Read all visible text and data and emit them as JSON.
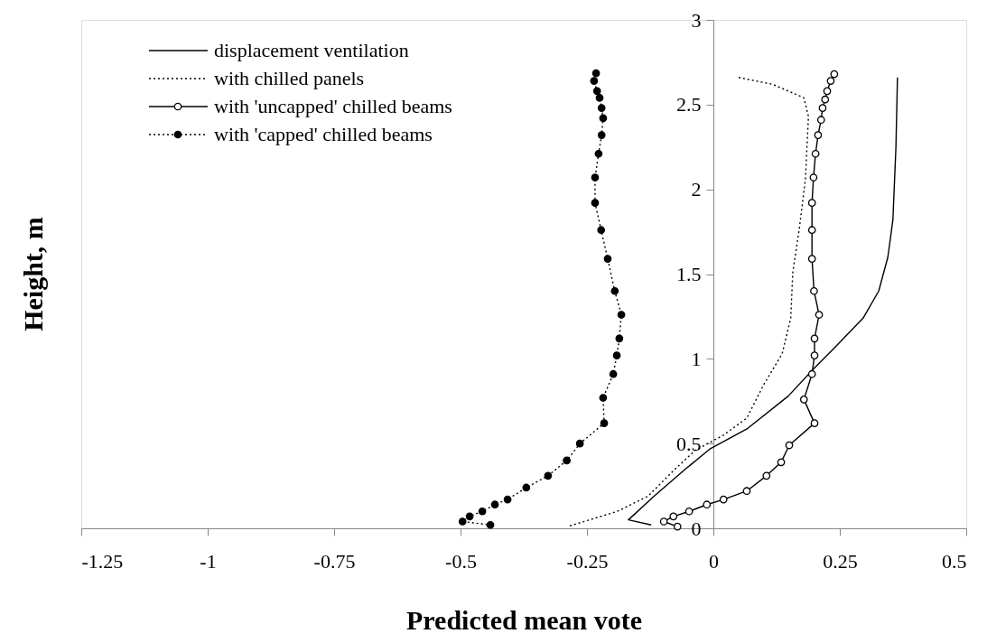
{
  "chart_data": {
    "type": "line",
    "xlabel": "Predicted mean vote",
    "ylabel": "Height, m",
    "xlim": [
      -1.25,
      0.5
    ],
    "xticks": [
      -1.25,
      -1,
      -0.75,
      -0.5,
      -0.25,
      0,
      0.25,
      0.5
    ],
    "ylim": [
      0,
      3
    ],
    "yticks": [
      0,
      0.5,
      1,
      1.5,
      2,
      2.5,
      3
    ],
    "grid": false,
    "legend": "top left",
    "series": [
      {
        "name": "displacement ventilation",
        "color": "#000000",
        "line_style": "solid",
        "marker": "none",
        "x": [
          0.364,
          0.361,
          0.355,
          0.345,
          0.327,
          0.296,
          0.241,
          0.198,
          0.148,
          0.068,
          -0.006,
          -0.055,
          -0.117,
          -0.168,
          -0.123
        ],
        "values": [
          2.66,
          2.25,
          1.82,
          1.6,
          1.4,
          1.24,
          1.07,
          0.94,
          0.78,
          0.59,
          0.47,
          0.35,
          0.19,
          0.05,
          0.02
        ]
      },
      {
        "name": "with chilled panels",
        "color": "#000000",
        "line_style": "dotted",
        "marker": "none",
        "x": [
          0.05,
          0.117,
          0.179,
          0.188,
          0.182,
          0.17,
          0.157,
          0.153,
          0.136,
          0.1,
          0.066,
          0.02,
          -0.036,
          -0.079,
          -0.129,
          -0.19,
          -0.289
        ],
        "values": [
          2.66,
          2.62,
          2.54,
          2.43,
          2.06,
          1.77,
          1.51,
          1.24,
          1.03,
          0.85,
          0.65,
          0.55,
          0.46,
          0.34,
          0.19,
          0.1,
          0.01
        ]
      },
      {
        "name": "with 'uncapped' chilled beams",
        "color": "#000000",
        "line_style": "solid",
        "marker": "circle",
        "x": [
          0.239,
          0.232,
          0.225,
          0.221,
          0.216,
          0.213,
          0.207,
          0.202,
          0.198,
          0.195,
          0.195,
          0.195,
          0.199,
          0.209,
          0.2,
          0.2,
          0.195,
          0.179,
          0.2,
          0.15,
          0.134,
          0.105,
          0.066,
          0.02,
          -0.013,
          -0.048,
          -0.079,
          -0.098,
          -0.071
        ],
        "values": [
          2.68,
          2.64,
          2.58,
          2.53,
          2.48,
          2.41,
          2.32,
          2.21,
          2.07,
          1.92,
          1.76,
          1.59,
          1.4,
          1.26,
          1.12,
          1.02,
          0.91,
          0.76,
          0.62,
          0.49,
          0.39,
          0.31,
          0.22,
          0.17,
          0.14,
          0.1,
          0.07,
          0.04,
          0.01
        ]
      },
      {
        "name": "with 'capped' chilled beams",
        "color": "#000000",
        "line_style": "dotted",
        "marker": "circle",
        "x": [
          -0.232,
          -0.236,
          -0.23,
          -0.225,
          -0.221,
          -0.218,
          -0.221,
          -0.227,
          -0.234,
          -0.234,
          -0.222,
          -0.209,
          -0.195,
          -0.182,
          -0.186,
          -0.191,
          -0.198,
          -0.218,
          -0.216,
          -0.264,
          -0.29,
          -0.327,
          -0.37,
          -0.407,
          -0.432,
          -0.457,
          -0.482,
          -0.496,
          -0.441
        ],
        "values": [
          2.685,
          2.64,
          2.58,
          2.54,
          2.48,
          2.42,
          2.32,
          2.21,
          2.07,
          1.92,
          1.76,
          1.59,
          1.4,
          1.26,
          1.12,
          1.02,
          0.91,
          0.77,
          0.62,
          0.5,
          0.4,
          0.31,
          0.24,
          0.17,
          0.14,
          0.1,
          0.07,
          0.04,
          0.02
        ]
      }
    ]
  }
}
